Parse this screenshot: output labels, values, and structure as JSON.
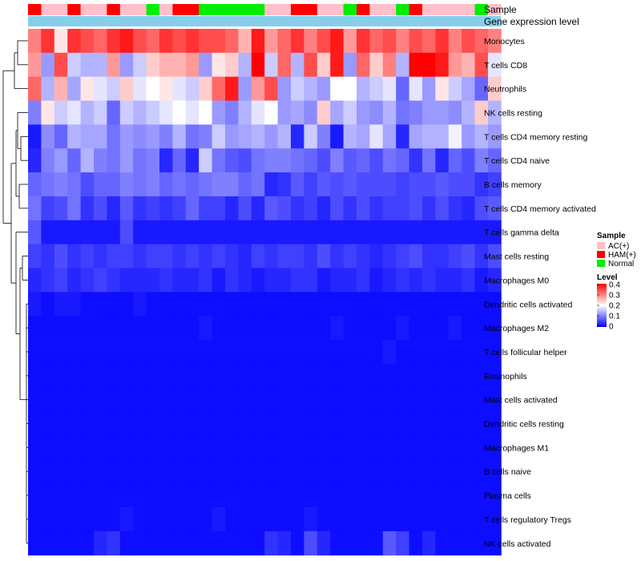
{
  "chart_data": {
    "type": "heatmap",
    "annotations": {
      "sample_label": "Sample",
      "gene_label": "Gene expression level"
    },
    "sample_groups": [
      "HAM(+)",
      "AC(+)",
      "AC(+)",
      "HAM(+)",
      "AC(+)",
      "AC(+)",
      "HAM(+)",
      "AC(+)",
      "AC(+)",
      "Normal",
      "AC(+)",
      "HAM(+)",
      "HAM(+)",
      "Normal",
      "Normal",
      "Normal",
      "Normal",
      "Normal",
      "AC(+)",
      "AC(+)",
      "HAM(+)",
      "HAM(+)",
      "AC(+)",
      "AC(+)",
      "Normal",
      "HAM(+)",
      "AC(+)",
      "AC(+)",
      "Normal",
      "HAM(+)",
      "AC(+)",
      "AC(+)",
      "AC(+)",
      "AC(+)",
      "Normal",
      "AC(+)"
    ],
    "rows": [
      "Monocytes",
      "T cells CD8",
      "Neutrophils",
      "NK cells resting",
      "T cells CD4 memory resting",
      "T cells CD4 naive",
      "B cells memory",
      "T cells CD4 memory activated",
      "T cells gamma delta",
      "Mast cells resting",
      "Macrophages M0",
      "Dendritic cells activated",
      "Macrophages M2",
      "T cells follicular helper",
      "Eosinophils",
      "Mast cells activated",
      "Dendritic cells resting",
      "Macrophages M1",
      "B cells naive",
      "Plasma cells",
      "T cells regulatory  Tregs",
      "NK cells activated"
    ],
    "values": [
      [
        0.3,
        0.36,
        0.22,
        0.36,
        0.34,
        0.32,
        0.36,
        0.38,
        0.34,
        0.32,
        0.36,
        0.34,
        0.36,
        0.34,
        0.34,
        0.32,
        0.26,
        0.38,
        0.28,
        0.32,
        0.36,
        0.3,
        0.34,
        0.38,
        0.28,
        0.36,
        0.32,
        0.34,
        0.3,
        0.34,
        0.32,
        0.36,
        0.3,
        0.34,
        0.32,
        0.3
      ],
      [
        0.28,
        0.12,
        0.34,
        0.16,
        0.14,
        0.14,
        0.28,
        0.12,
        0.16,
        0.24,
        0.26,
        0.26,
        0.28,
        0.12,
        0.22,
        0.24,
        0.14,
        0.4,
        0.16,
        0.32,
        0.14,
        0.34,
        0.24,
        0.38,
        0.12,
        0.32,
        0.24,
        0.3,
        0.14,
        0.4,
        0.4,
        0.38,
        0.28,
        0.26,
        0.34,
        0.18
      ],
      [
        0.32,
        0.14,
        0.26,
        0.13,
        0.22,
        0.18,
        0.16,
        0.24,
        0.18,
        0.2,
        0.22,
        0.18,
        0.16,
        0.24,
        0.32,
        0.38,
        0.12,
        0.28,
        0.34,
        0.12,
        0.16,
        0.14,
        0.12,
        0.2,
        0.2,
        0.14,
        0.16,
        0.18,
        0.08,
        0.18,
        0.12,
        0.22,
        0.16,
        0.13,
        0.08,
        0.24
      ],
      [
        0.1,
        0.22,
        0.16,
        0.18,
        0.14,
        0.16,
        0.08,
        0.16,
        0.14,
        0.16,
        0.18,
        0.2,
        0.18,
        0.2,
        0.12,
        0.1,
        0.14,
        0.18,
        0.2,
        0.12,
        0.13,
        0.11,
        0.24,
        0.13,
        0.16,
        0.12,
        0.11,
        0.14,
        0.09,
        0.1,
        0.12,
        0.12,
        0.11,
        0.14,
        0.24,
        0.14
      ],
      [
        0.02,
        0.11,
        0.08,
        0.14,
        0.13,
        0.13,
        0.09,
        0.12,
        0.11,
        0.12,
        0.1,
        0.14,
        0.09,
        0.1,
        0.16,
        0.12,
        0.13,
        0.14,
        0.12,
        0.14,
        0.03,
        0.16,
        0.1,
        0.02,
        0.14,
        0.13,
        0.18,
        0.13,
        0.03,
        0.13,
        0.14,
        0.14,
        0.19,
        0.12,
        0.14,
        0.12
      ],
      [
        0.03,
        0.1,
        0.12,
        0.08,
        0.14,
        0.1,
        0.09,
        0.12,
        0.09,
        0.1,
        0.03,
        0.08,
        0.03,
        0.16,
        0.09,
        0.07,
        0.06,
        0.09,
        0.1,
        0.1,
        0.09,
        0.08,
        0.06,
        0.1,
        0.07,
        0.08,
        0.06,
        0.09,
        0.08,
        0.04,
        0.09,
        0.03,
        0.08,
        0.06,
        0.1,
        0.08
      ],
      [
        0.08,
        0.09,
        0.1,
        0.09,
        0.06,
        0.08,
        0.08,
        0.1,
        0.09,
        0.1,
        0.08,
        0.09,
        0.08,
        0.09,
        0.1,
        0.1,
        0.08,
        0.09,
        0.03,
        0.04,
        0.07,
        0.05,
        0.07,
        0.06,
        0.07,
        0.06,
        0.06,
        0.06,
        0.05,
        0.06,
        0.06,
        0.07,
        0.06,
        0.06,
        0.04,
        0.05
      ],
      [
        0.09,
        0.05,
        0.06,
        0.09,
        0.04,
        0.06,
        0.03,
        0.07,
        0.04,
        0.05,
        0.04,
        0.05,
        0.08,
        0.05,
        0.05,
        0.03,
        0.06,
        0.03,
        0.07,
        0.06,
        0.04,
        0.05,
        0.03,
        0.06,
        0.04,
        0.06,
        0.04,
        0.05,
        0.05,
        0.06,
        0.04,
        0.06,
        0.04,
        0.03,
        0.06,
        0.07
      ],
      [
        0.07,
        0.02,
        0.02,
        0.02,
        0.02,
        0.02,
        0.02,
        0.06,
        0.02,
        0.02,
        0.02,
        0.02,
        0.02,
        0.02,
        0.02,
        0.02,
        0.02,
        0.02,
        0.02,
        0.02,
        0.02,
        0.02,
        0.02,
        0.02,
        0.02,
        0.02,
        0.02,
        0.02,
        0.02,
        0.02,
        0.02,
        0.02,
        0.02,
        0.02,
        0.02,
        0.02
      ],
      [
        0.05,
        0.04,
        0.06,
        0.04,
        0.05,
        0.04,
        0.05,
        0.05,
        0.04,
        0.05,
        0.05,
        0.04,
        0.05,
        0.04,
        0.05,
        0.04,
        0.03,
        0.05,
        0.04,
        0.05,
        0.05,
        0.04,
        0.06,
        0.04,
        0.05,
        0.04,
        0.03,
        0.04,
        0.05,
        0.06,
        0.04,
        0.04,
        0.05,
        0.06,
        0.04,
        0.06
      ],
      [
        0.03,
        0.04,
        0.05,
        0.03,
        0.04,
        0.05,
        0.04,
        0.03,
        0.03,
        0.03,
        0.04,
        0.03,
        0.03,
        0.04,
        0.02,
        0.04,
        0.03,
        0.02,
        0.03,
        0.03,
        0.04,
        0.04,
        0.02,
        0.03,
        0.03,
        0.04,
        0.02,
        0.03,
        0.04,
        0.03,
        0.04,
        0.03,
        0.03,
        0.04,
        0.02,
        0.03
      ],
      [
        0.02,
        0.01,
        0.02,
        0.02,
        0.01,
        0.01,
        0.01,
        0.01,
        0.02,
        0.01,
        0.01,
        0.01,
        0.01,
        0.01,
        0.01,
        0.01,
        0.01,
        0.01,
        0.01,
        0.01,
        0.01,
        0.01,
        0.01,
        0.01,
        0.01,
        0.01,
        0.01,
        0.01,
        0.01,
        0.01,
        0.01,
        0.01,
        0.01,
        0.01,
        0.01,
        0.01
      ],
      [
        0.01,
        0.01,
        0.01,
        0.01,
        0.01,
        0.01,
        0.01,
        0.01,
        0.01,
        0.01,
        0.01,
        0.01,
        0.01,
        0.02,
        0.01,
        0.01,
        0.01,
        0.01,
        0.01,
        0.01,
        0.01,
        0.01,
        0.01,
        0.02,
        0.01,
        0.01,
        0.01,
        0.01,
        0.02,
        0.01,
        0.01,
        0.01,
        0.02,
        0.01,
        0.01,
        0.01
      ],
      [
        0.01,
        0.01,
        0.01,
        0.01,
        0.01,
        0.01,
        0.01,
        0.01,
        0.01,
        0.01,
        0.01,
        0.01,
        0.01,
        0.01,
        0.01,
        0.01,
        0.01,
        0.01,
        0.01,
        0.01,
        0.01,
        0.01,
        0.01,
        0.01,
        0.01,
        0.01,
        0.01,
        0.02,
        0.01,
        0.01,
        0.01,
        0.01,
        0.01,
        0.01,
        0.01,
        0.01
      ],
      [
        0.01,
        0.01,
        0.01,
        0.01,
        0.01,
        0.01,
        0.01,
        0.01,
        0.01,
        0.01,
        0.01,
        0.01,
        0.01,
        0.01,
        0.01,
        0.01,
        0.01,
        0.01,
        0.01,
        0.01,
        0.01,
        0.01,
        0.01,
        0.01,
        0.01,
        0.01,
        0.01,
        0.01,
        0.01,
        0.01,
        0.01,
        0.01,
        0.01,
        0.01,
        0.01,
        0.01
      ],
      [
        0.01,
        0.01,
        0.01,
        0.01,
        0.01,
        0.01,
        0.01,
        0.01,
        0.01,
        0.01,
        0.01,
        0.01,
        0.01,
        0.01,
        0.01,
        0.01,
        0.01,
        0.01,
        0.01,
        0.01,
        0.01,
        0.01,
        0.01,
        0.01,
        0.01,
        0.01,
        0.01,
        0.01,
        0.01,
        0.01,
        0.01,
        0.01,
        0.01,
        0.01,
        0.01,
        0.01
      ],
      [
        0.01,
        0.01,
        0.01,
        0.01,
        0.01,
        0.01,
        0.01,
        0.01,
        0.01,
        0.01,
        0.01,
        0.01,
        0.01,
        0.01,
        0.01,
        0.01,
        0.01,
        0.01,
        0.01,
        0.01,
        0.01,
        0.01,
        0.01,
        0.01,
        0.01,
        0.01,
        0.01,
        0.01,
        0.01,
        0.01,
        0.01,
        0.01,
        0.01,
        0.01,
        0.01,
        0.01
      ],
      [
        0.01,
        0.01,
        0.01,
        0.01,
        0.01,
        0.01,
        0.01,
        0.01,
        0.01,
        0.01,
        0.01,
        0.01,
        0.01,
        0.01,
        0.01,
        0.01,
        0.01,
        0.01,
        0.01,
        0.01,
        0.01,
        0.01,
        0.01,
        0.01,
        0.01,
        0.01,
        0.01,
        0.01,
        0.01,
        0.01,
        0.01,
        0.01,
        0.01,
        0.01,
        0.01,
        0.01
      ],
      [
        0.01,
        0.01,
        0.01,
        0.01,
        0.01,
        0.01,
        0.01,
        0.01,
        0.01,
        0.01,
        0.01,
        0.01,
        0.01,
        0.01,
        0.01,
        0.01,
        0.01,
        0.01,
        0.01,
        0.01,
        0.01,
        0.01,
        0.01,
        0.01,
        0.01,
        0.01,
        0.01,
        0.01,
        0.01,
        0.01,
        0.01,
        0.01,
        0.01,
        0.01,
        0.01,
        0.01
      ],
      [
        0.01,
        0.01,
        0.01,
        0.01,
        0.01,
        0.01,
        0.01,
        0.01,
        0.01,
        0.01,
        0.01,
        0.01,
        0.01,
        0.01,
        0.01,
        0.01,
        0.01,
        0.01,
        0.01,
        0.01,
        0.01,
        0.01,
        0.01,
        0.01,
        0.01,
        0.01,
        0.01,
        0.01,
        0.01,
        0.01,
        0.01,
        0.01,
        0.01,
        0.01,
        0.01,
        0.01
      ],
      [
        0.01,
        0.01,
        0.01,
        0.01,
        0.01,
        0.01,
        0.01,
        0.02,
        0.01,
        0.01,
        0.01,
        0.01,
        0.01,
        0.01,
        0.02,
        0.01,
        0.01,
        0.01,
        0.01,
        0.01,
        0.01,
        0.02,
        0.01,
        0.01,
        0.01,
        0.01,
        0.01,
        0.01,
        0.01,
        0.01,
        0.01,
        0.01,
        0.01,
        0.01,
        0.01,
        0.01
      ],
      [
        0.01,
        0.01,
        0.01,
        0.01,
        0.01,
        0.03,
        0.04,
        0.01,
        0.01,
        0.01,
        0.01,
        0.01,
        0.01,
        0.01,
        0.01,
        0.01,
        0.01,
        0.01,
        0.04,
        0.03,
        0.01,
        0.06,
        0.03,
        0.01,
        0.01,
        0.01,
        0.01,
        0.07,
        0.05,
        0.01,
        0.03,
        0.01,
        0.01,
        0.01,
        0.01,
        0.01
      ]
    ],
    "legend": {
      "sample_title": "Sample",
      "sample_items": [
        {
          "label": "AC(+)",
          "color": "#FFC0CB"
        },
        {
          "label": "HAM(+)",
          "color": "#FF0000"
        },
        {
          "label": "Normal",
          "color": "#00EE00"
        }
      ],
      "level_title": "Level",
      "level_ticks": [
        "0.4",
        "0.3",
        "0.2",
        "0.1",
        "0"
      ],
      "range": [
        0,
        0.4
      ]
    },
    "gene_bar_color": "#87CEEB",
    "color_scale": [
      "#0000FF",
      "#FFFFFF",
      "#FF0000"
    ]
  }
}
